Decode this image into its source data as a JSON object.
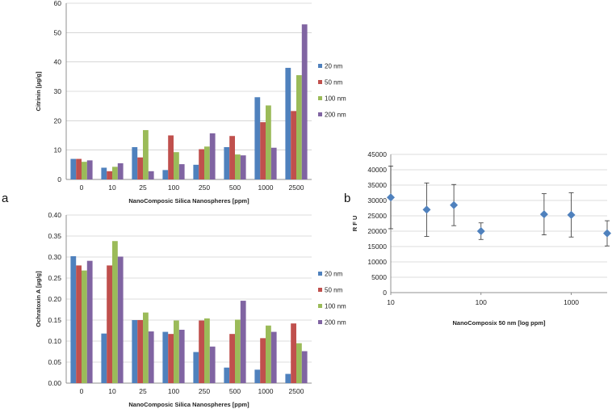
{
  "panel_labels": {
    "a": "a",
    "b": "b"
  },
  "colors": {
    "20 nm": "#4f81bd",
    "50 nm": "#c0504d",
    "100 nm": "#9bbb59",
    "200 nm": "#8064a2",
    "scatter": "#4f81bd"
  },
  "chart_data": [
    {
      "id": "citrinin",
      "type": "bar",
      "title": "",
      "xlabel": "NanoComposic Silica Nanospheres [ppm]",
      "ylabel": "Citrinin [µg/g]",
      "categories": [
        "0",
        "10",
        "25",
        "100",
        "250",
        "500",
        "1000",
        "2500"
      ],
      "ylim": [
        0,
        60
      ],
      "yticks": [
        "0",
        "10",
        "20",
        "30",
        "40",
        "50",
        "60"
      ],
      "series": [
        {
          "name": "20 nm",
          "values": [
            7,
            4,
            11,
            3.2,
            5,
            11,
            28,
            38
          ]
        },
        {
          "name": "50 nm",
          "values": [
            7,
            2.8,
            7.5,
            15,
            10.3,
            14.8,
            19.5,
            23.3
          ]
        },
        {
          "name": "100 nm",
          "values": [
            6,
            4.3,
            16.8,
            9.3,
            11.2,
            8.5,
            25.2,
            35.5
          ]
        },
        {
          "name": "200 nm",
          "values": [
            6.5,
            5.5,
            2.8,
            5.2,
            15.7,
            8.2,
            10.8,
            52.8
          ]
        }
      ],
      "legend": "right"
    },
    {
      "id": "ochratoxin",
      "type": "bar",
      "title": "",
      "xlabel": "NanoComposic Silica Nanospheres [ppm]",
      "ylabel": "Ochratoxin A [µg/g]",
      "categories": [
        "0",
        "10",
        "25",
        "100",
        "250",
        "500",
        "1000",
        "2500"
      ],
      "ylim": [
        0,
        0.4
      ],
      "yticks": [
        "0.00",
        "0.05",
        "0.10",
        "0.15",
        "0.20",
        "0.25",
        "0.30",
        "0.35",
        "0.40"
      ],
      "series": [
        {
          "name": "20 nm",
          "values": [
            0.302,
            0.118,
            0.15,
            0.122,
            0.074,
            0.037,
            0.032,
            0.022
          ]
        },
        {
          "name": "50 nm",
          "values": [
            0.28,
            0.28,
            0.15,
            0.117,
            0.149,
            0.117,
            0.107,
            0.142
          ]
        },
        {
          "name": "100 nm",
          "values": [
            0.268,
            0.338,
            0.168,
            0.149,
            0.154,
            0.151,
            0.137,
            0.095
          ]
        },
        {
          "name": "200 nm",
          "values": [
            0.291,
            0.301,
            0.123,
            0.127,
            0.087,
            0.196,
            0.122,
            0.076
          ]
        }
      ],
      "legend": "right"
    },
    {
      "id": "rfu",
      "type": "scatter",
      "title": "",
      "xlabel": "NanoComposix 50 nm [log ppm]",
      "ylabel": "R F U",
      "xscale": "log",
      "xlim": [
        10,
        2500
      ],
      "xticks": [
        "10",
        "100",
        "1000"
      ],
      "ylim": [
        0,
        45000
      ],
      "yticks": [
        "0",
        "5000",
        "10000",
        "15000",
        "20000",
        "25000",
        "30000",
        "35000",
        "40000",
        "45000"
      ],
      "points": [
        {
          "x": 10,
          "y": 31000,
          "err": 10200
        },
        {
          "x": 25,
          "y": 27000,
          "err": 8700
        },
        {
          "x": 50,
          "y": 28500,
          "err": 6700
        },
        {
          "x": 100,
          "y": 20000,
          "err": 2700
        },
        {
          "x": 500,
          "y": 25500,
          "err": 6700
        },
        {
          "x": 1000,
          "y": 25300,
          "err": 7200
        },
        {
          "x": 2500,
          "y": 19300,
          "err": 4100
        }
      ]
    }
  ]
}
